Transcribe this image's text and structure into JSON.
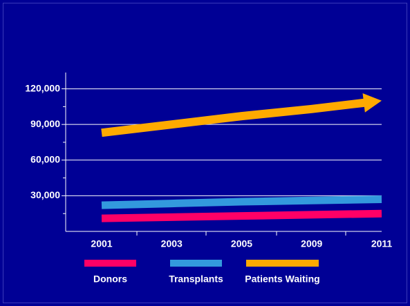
{
  "chart_data": {
    "type": "line",
    "categories": [
      "2001",
      "2003",
      "2005",
      "2009",
      "2011"
    ],
    "series": [
      {
        "name": "Donors",
        "color": "#ff0066",
        "values": [
          11000,
          12000,
          13000,
          14000,
          15000
        ]
      },
      {
        "name": "Transplants",
        "color": "#3399dd",
        "values": [
          22000,
          23500,
          25000,
          26000,
          27000
        ]
      },
      {
        "name": "Patients Waiting",
        "color": "#ffaa00",
        "values": [
          83000,
          90000,
          97000,
          103000,
          110000
        ],
        "arrow": true
      }
    ],
    "ylim": [
      0,
      133700
    ],
    "yticks": [
      {
        "value": 30000,
        "label": "30,000"
      },
      {
        "value": 60000,
        "label": "60,000"
      },
      {
        "value": 90000,
        "label": "90,000"
      },
      {
        "value": 120000,
        "label": "120,000"
      }
    ],
    "yticks_minor": [
      15000,
      45000,
      75000,
      105000
    ],
    "grid": true,
    "legend": "bottom"
  }
}
